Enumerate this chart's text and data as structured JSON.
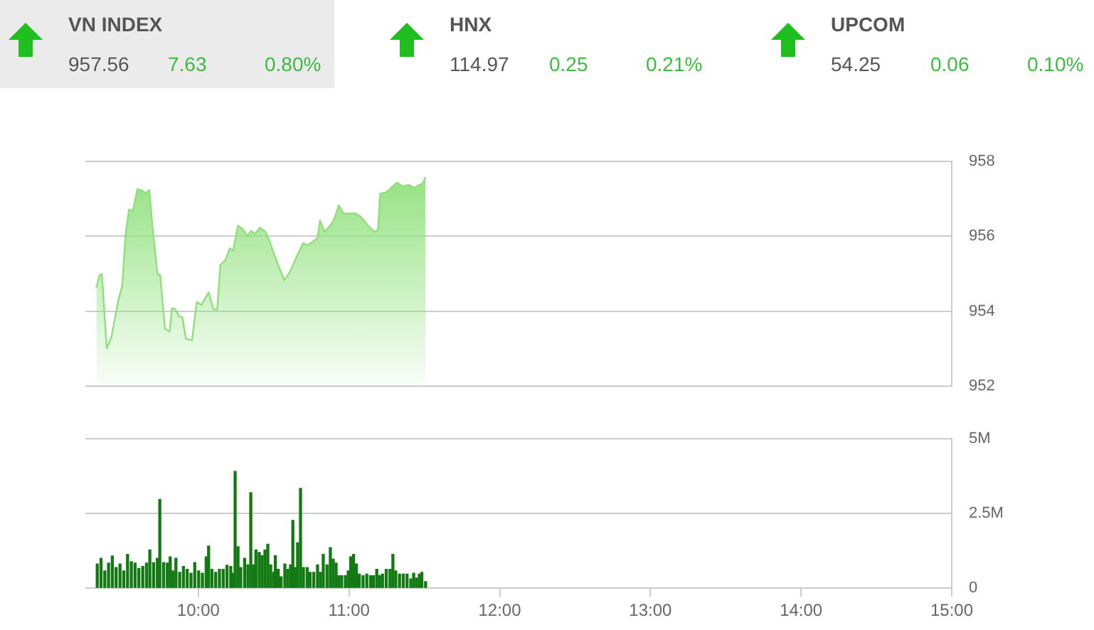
{
  "chart_data": [
    {
      "type": "other",
      "annotations": [
        "VN INDEX",
        "957.56",
        "7.63",
        "0.80%",
        "HNX",
        "114.97",
        "0.25",
        "0.21%",
        "UPCOM",
        "54.25",
        "0.06",
        "0.10%"
      ]
    },
    {
      "type": "area",
      "xlim": [
        9.25,
        15
      ],
      "ylim": [
        952,
        958
      ],
      "yticks": [
        952,
        954,
        956,
        958
      ],
      "grid": "y",
      "tick_labels": "y",
      "marker": "none",
      "series": [
        {
          "color": "#8ee07a",
          "x": [
            9.323,
            9.344,
            9.36,
            9.392,
            9.423,
            9.47,
            9.495,
            9.517,
            9.54,
            9.564,
            9.596,
            9.627,
            9.653,
            9.675,
            9.69,
            9.728,
            9.747,
            9.778,
            9.809,
            9.825,
            9.847,
            9.873,
            9.894,
            9.917,
            9.958,
            9.989,
            10.021,
            10.068,
            10.099,
            10.125,
            10.146,
            10.177,
            10.209,
            10.231,
            10.262,
            10.294,
            10.325,
            10.351,
            10.375,
            10.408,
            10.445,
            10.47,
            10.508,
            10.54,
            10.571,
            10.608,
            10.649,
            10.696,
            10.722,
            10.759,
            10.791,
            10.807,
            10.838,
            10.879,
            10.901,
            10.932,
            10.964,
            11.042,
            11.08,
            11.121,
            11.168,
            11.193,
            11.206,
            11.247,
            11.319,
            11.357,
            11.394,
            11.436,
            11.467,
            11.489,
            11.508
          ],
          "values": [
            954.63,
            954.96,
            954.99,
            953.0,
            953.31,
            954.3,
            954.69,
            956.06,
            956.72,
            956.67,
            957.27,
            957.22,
            957.16,
            957.24,
            956.5,
            955.0,
            954.96,
            953.53,
            953.45,
            954.08,
            954.05,
            953.86,
            953.84,
            953.26,
            953.22,
            954.24,
            954.17,
            954.5,
            954.06,
            954.03,
            955.24,
            955.35,
            955.68,
            955.62,
            956.28,
            956.2,
            956.01,
            956.15,
            956.06,
            956.23,
            956.12,
            955.9,
            955.46,
            955.13,
            954.83,
            955.05,
            955.43,
            955.82,
            955.76,
            955.86,
            955.95,
            956.42,
            956.12,
            956.31,
            956.45,
            956.83,
            956.61,
            956.61,
            956.52,
            956.31,
            956.12,
            956.18,
            957.14,
            957.18,
            957.44,
            957.33,
            957.38,
            957.3,
            957.38,
            957.41,
            957.58
          ]
        }
      ]
    },
    {
      "type": "bar",
      "xlim": [
        9.25,
        15
      ],
      "xticks": [
        {
          "value": 10,
          "label": "10:00"
        },
        {
          "value": 11,
          "label": "11:00"
        },
        {
          "value": 12,
          "label": "12:00"
        },
        {
          "value": 13,
          "label": "13:00"
        },
        {
          "value": 14,
          "label": "14:00"
        },
        {
          "value": 15,
          "label": "15:00"
        }
      ],
      "ylim": [
        0,
        5
      ],
      "yticks": [
        0,
        {
          "value": 2.5,
          "label": "2.5M"
        },
        {
          "value": 5,
          "label": "5M"
        }
      ],
      "grid": "y",
      "series": [
        {
          "color": "#137a13",
          "x": [
            9.329,
            9.354,
            9.379,
            9.404,
            9.429,
            9.454,
            9.48,
            9.505,
            9.53,
            9.555,
            9.58,
            9.605,
            9.631,
            9.656,
            9.678,
            9.703,
            9.728,
            9.744,
            9.769,
            9.794,
            9.813,
            9.832,
            9.851,
            9.876,
            9.901,
            9.926,
            9.951,
            9.976,
            10.002,
            10.027,
            10.052,
            10.068,
            10.09,
            10.115,
            10.14,
            10.165,
            10.19,
            10.215,
            10.228,
            10.244,
            10.263,
            10.281,
            10.307,
            10.329,
            10.348,
            10.366,
            10.382,
            10.404,
            10.423,
            10.442,
            10.461,
            10.48,
            10.499,
            10.511,
            10.53,
            10.549,
            10.574,
            10.593,
            10.612,
            10.627,
            10.643,
            10.659,
            10.678,
            10.697,
            10.722,
            10.741,
            10.766,
            10.791,
            10.81,
            10.829,
            10.854,
            10.876,
            10.895,
            10.914,
            10.932,
            10.951,
            10.976,
            10.995,
            11.011,
            11.03,
            11.049,
            11.068,
            11.093,
            11.118,
            11.143,
            11.162,
            11.184,
            11.203,
            11.222,
            11.247,
            11.272,
            11.291,
            11.31,
            11.335,
            11.36,
            11.385,
            11.41,
            11.429,
            11.448,
            11.467,
            11.483,
            11.508
          ],
          "values": [
            0.81,
            1.0,
            0.58,
            0.84,
            1.08,
            0.69,
            0.81,
            0.58,
            1.13,
            0.89,
            0.84,
            0.66,
            0.73,
            0.84,
            1.28,
            0.86,
            1.0,
            2.97,
            0.86,
            0.84,
            1.05,
            0.58,
            1.0,
            0.53,
            0.73,
            0.63,
            0.5,
            0.86,
            0.58,
            0.5,
            1.05,
            1.41,
            0.63,
            0.53,
            0.63,
            0.63,
            0.77,
            0.73,
            0.5,
            3.91,
            1.39,
            0.69,
            1.0,
            0.78,
            3.2,
            0.78,
            1.28,
            1.2,
            1.09,
            1.28,
            1.47,
            0.78,
            0.53,
            1.09,
            0.63,
            0.38,
            0.81,
            0.63,
            0.78,
            2.27,
            0.69,
            1.52,
            3.34,
            0.69,
            0.69,
            0.53,
            0.53,
            0.78,
            0.53,
            1.13,
            0.78,
            1.36,
            0.97,
            0.84,
            0.42,
            0.42,
            0.42,
            0.58,
            1.05,
            1.13,
            0.81,
            0.47,
            0.42,
            0.47,
            0.42,
            0.42,
            0.63,
            0.42,
            0.47,
            0.63,
            0.63,
            1.13,
            0.58,
            0.47,
            0.47,
            0.47,
            0.31,
            0.5,
            0.34,
            0.47,
            0.53,
            0.22
          ]
        }
      ]
    }
  ]
}
